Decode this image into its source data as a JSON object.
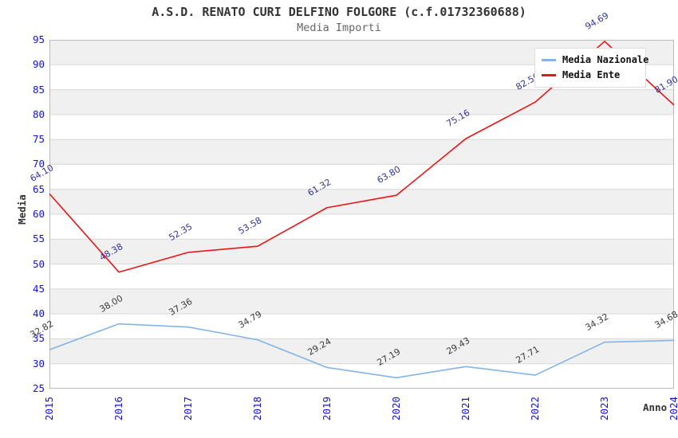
{
  "chart_data": {
    "type": "line",
    "title": "A.S.D. RENATO CURI DELFINO FOLGORE (c.f.01732360688)",
    "subtitle": "Media Importi",
    "xlabel": "Anno",
    "ylabel": "Media",
    "categories": [
      "2015",
      "2016",
      "2017",
      "2018",
      "2019",
      "2020",
      "2021",
      "2022",
      "2023",
      "2024"
    ],
    "ylim": [
      25,
      95
    ],
    "ytick_step": 5,
    "grid": true,
    "alternating_bands": true,
    "legend_position": "top-right-inside",
    "series": [
      {
        "name": "Media Nazionale",
        "color": "#82b4e8",
        "label_color": "#3a3a3a",
        "values": [
          32.82,
          38.0,
          37.36,
          34.79,
          29.24,
          27.19,
          29.43,
          27.71,
          34.32,
          34.68
        ],
        "labels": [
          "32.82",
          "38.00",
          "37.36",
          "34.79",
          "29.24",
          "27.19",
          "29.43",
          "27.71",
          "34.32",
          "34.68"
        ]
      },
      {
        "name": "Media Ente",
        "color": "#e81515",
        "label_color": "#333399",
        "values": [
          64.1,
          48.38,
          52.35,
          53.58,
          61.32,
          63.8,
          75.16,
          82.5,
          94.69,
          81.9
        ],
        "labels": [
          "64.10",
          "48.38",
          "52.35",
          "53.58",
          "61.32",
          "63.80",
          "75.16",
          "82.50",
          "94.69",
          "81.90"
        ]
      }
    ],
    "colors": {
      "tick_label": "#1414cc",
      "band_fill": "#f0f0f0",
      "grid_line": "#d8d8d8",
      "plot_border": "#bbbbbb",
      "title": "#333333",
      "subtitle": "#666666"
    }
  }
}
